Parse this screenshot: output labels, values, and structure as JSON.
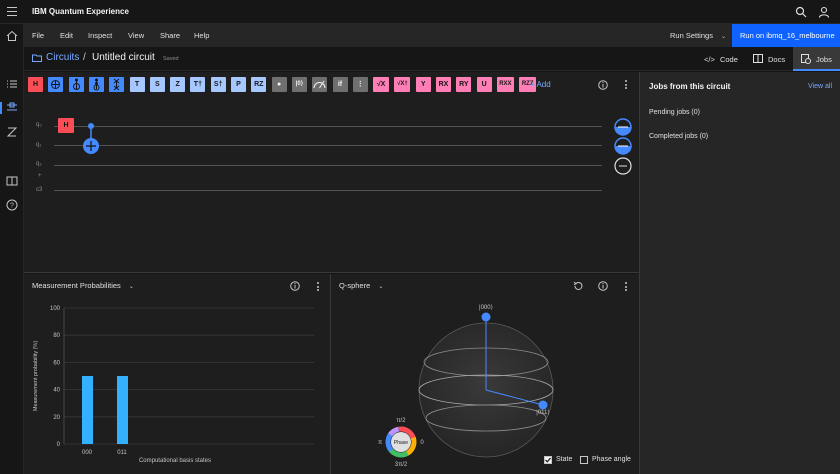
{
  "app": {
    "title": "IBM Quantum Experience"
  },
  "menu": {
    "items": [
      "File",
      "Edit",
      "Inspect",
      "View",
      "Share",
      "Help"
    ],
    "run_settings": "Run Settings",
    "run_button": "Run on ibmq_16_melbourne"
  },
  "breadcrumb": {
    "parent": "Circuits",
    "separator": "/",
    "title": "Untitled circuit",
    "status": "Saved"
  },
  "right_tabs": [
    {
      "label": "Code",
      "icon": "code-icon"
    },
    {
      "label": "Docs",
      "icon": "docs-icon"
    },
    {
      "label": "Jobs",
      "icon": "jobs-icon",
      "active": true
    }
  ],
  "gates": [
    {
      "label": "H",
      "style": "red"
    },
    {
      "label": "",
      "style": "blue",
      "icon": "cnot-icon"
    },
    {
      "label": "",
      "style": "blue",
      "icon": "toffoli-icon"
    },
    {
      "label": "",
      "style": "blue",
      "icon": "swap-icon-1"
    },
    {
      "label": "",
      "style": "blue",
      "icon": "swap-icon-2"
    },
    {
      "label": "T",
      "style": "lblue"
    },
    {
      "label": "S",
      "style": "lblue"
    },
    {
      "label": "Z",
      "style": "lblue"
    },
    {
      "label": "T†",
      "style": "lblue"
    },
    {
      "label": "S†",
      "style": "lblue"
    },
    {
      "label": "P",
      "style": "lblue"
    },
    {
      "label": "RZ",
      "style": "lblue"
    },
    {
      "label": "●",
      "style": "gray"
    },
    {
      "label": "|0⟩",
      "style": "gray"
    },
    {
      "label": "",
      "style": "gray",
      "icon": "measure-icon"
    },
    {
      "label": "if",
      "style": "gray"
    },
    {
      "label": "⋮",
      "style": "gray"
    },
    {
      "label": "√X",
      "style": "pink"
    },
    {
      "label": "√X†",
      "style": "pink"
    },
    {
      "label": "Y",
      "style": "pink"
    },
    {
      "label": "RX",
      "style": "pink"
    },
    {
      "label": "RY",
      "style": "pink"
    },
    {
      "label": "U",
      "style": "pink"
    },
    {
      "label": "RXX",
      "style": "pink"
    },
    {
      "label": "RZZ",
      "style": "pink"
    }
  ],
  "add_gate": "+ Add",
  "qubits": [
    "q₀",
    "q₁",
    "q₂",
    "+",
    "c3"
  ],
  "placed_gates": {
    "h": "H"
  },
  "jobs": {
    "title": "Jobs from this circuit",
    "view_all": "View all",
    "pending": "Pending jobs (0)",
    "completed": "Completed jobs (0)"
  },
  "measurement": {
    "title": "Measurement Probabilities",
    "ylabel": "Measurement probability (%)",
    "xlabel": "Computational basis states"
  },
  "chart_data": {
    "type": "bar",
    "title": "",
    "categories": [
      "000",
      "011"
    ],
    "values": [
      50,
      50
    ],
    "xlabel": "Computational basis states",
    "ylabel": "Measurement probability (%)",
    "ylim": [
      0,
      100
    ],
    "yticks": [
      0,
      20,
      40,
      60,
      80,
      100
    ],
    "grid": true,
    "bar_color": "#33b1ff"
  },
  "qsphere": {
    "title": "Q-sphere",
    "state_top": "|000⟩",
    "state_side": "|011⟩",
    "phase_label": "Phase",
    "phase_top": "π/2",
    "phase_left": "π",
    "phase_right": "0",
    "phase_bottom": "3π/2",
    "state_checkbox": "State",
    "phase_angle_checkbox": "Phase angle"
  },
  "colors": {
    "accent": "#0f62fe",
    "link": "#78a9ff",
    "bar": "#33b1ff"
  }
}
